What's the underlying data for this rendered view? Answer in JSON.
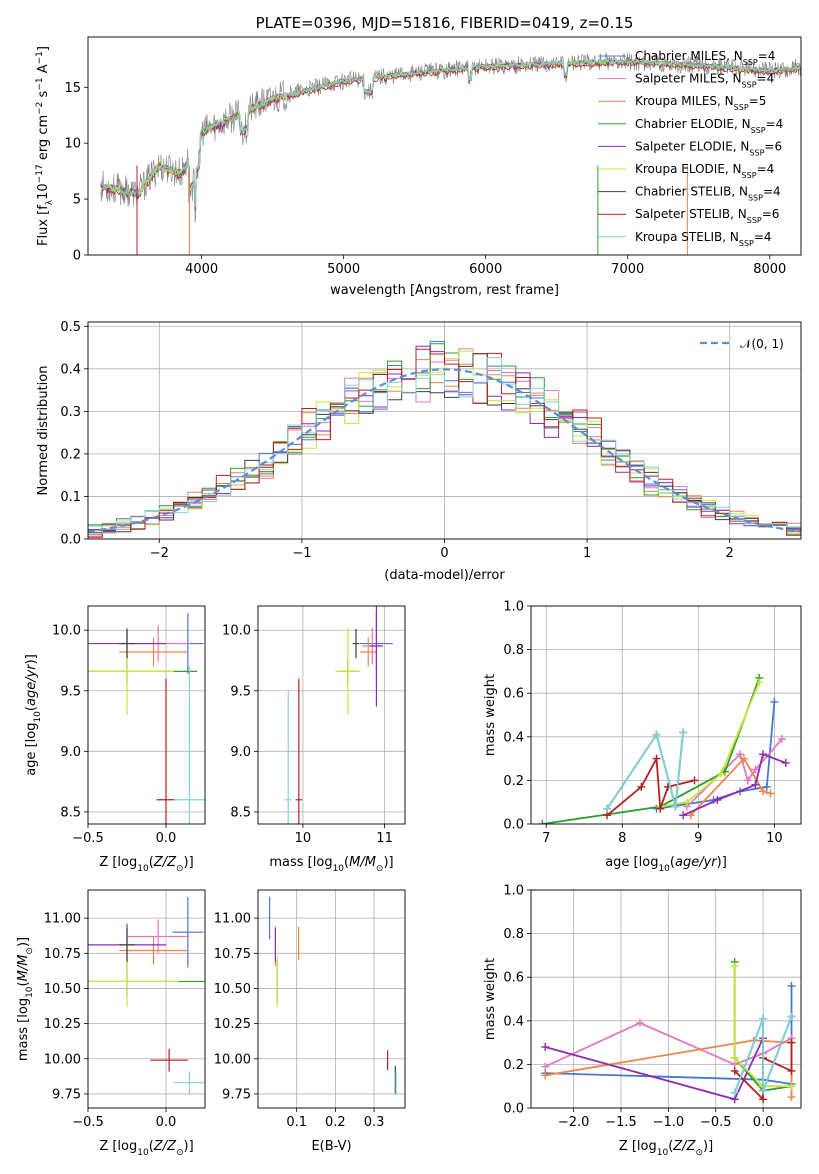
{
  "chart_data": [
    {
      "type": "line",
      "title": "PLATE=0396, MJD=51816, FIBERID=0419, z=0.15",
      "xlabel": "wavelength [Angstrom, rest frame]",
      "ylabel": "Flux [f_λ 10^-17 erg cm^-2 s^-1 A^-1]",
      "xlim": [
        3200,
        8220
      ],
      "ylim": [
        0,
        19.5
      ],
      "xticks": [
        4000,
        5000,
        6000,
        7000,
        8000
      ],
      "yticks": [
        0,
        5,
        10,
        15
      ],
      "grid": false,
      "legend_position": "top-right",
      "series": [
        {
          "name": "Chabrier MILES, N_SSP=4",
          "color": "#4878d0"
        },
        {
          "name": "Salpeter MILES, N_SSP=4",
          "color": "#e377c2"
        },
        {
          "name": "Kroupa MILES, N_SSP=5",
          "color": "#ee854a"
        },
        {
          "name": "Chabrier ELODIE, N_SSP=4",
          "color": "#2ca02c"
        },
        {
          "name": "Salpeter ELODIE, N_SSP=6",
          "color": "#8e2bb3"
        },
        {
          "name": "Kroupa ELODIE, N_SSP=4",
          "color": "#c8e63c"
        },
        {
          "name": "Chabrier STELIB, N_SSP=4",
          "color": "#404040"
        },
        {
          "name": "Salpeter STELIB, N_SSP=6",
          "color": "#b22222"
        },
        {
          "name": "Kroupa STELIB, N_SSP=4",
          "color": "#7fd3d9"
        }
      ],
      "spectrum_anchors": {
        "x": [
          3290,
          3550,
          3700,
          3860,
          4000,
          4300,
          4500,
          5000,
          5500,
          6000,
          6600,
          7000,
          7500,
          8000,
          8220
        ],
        "y": [
          6.2,
          5.5,
          8.0,
          7.3,
          11.0,
          12.8,
          14.0,
          15.6,
          16.3,
          16.9,
          17.2,
          17.3,
          17.0,
          16.5,
          16.8
        ]
      }
    },
    {
      "type": "line",
      "xlabel": "(data-model)/error",
      "ylabel": "Normed distribution",
      "xlim": [
        -2.5,
        2.5
      ],
      "ylim": [
        0,
        0.51
      ],
      "xticks": [
        -2,
        -1,
        0,
        1,
        2
      ],
      "yticks": [
        0.0,
        0.1,
        0.2,
        0.3,
        0.4,
        0.5
      ],
      "grid": true,
      "legend_position": "top-right",
      "legend": "𝒩(0, 1)",
      "curve_color": "#5b8ed6",
      "bin_width": 0.1,
      "hist_colors": [
        "#4878d0",
        "#e377c2",
        "#ee854a",
        "#2ca02c",
        "#8e2bb3",
        "#c8e63c",
        "#404040",
        "#b22222",
        "#7fd3d9"
      ]
    },
    {
      "type": "scatter",
      "xlabel": "Z [log10(Z/Z⊙)]",
      "ylabel": "age [log10(age/yr)]",
      "xlim": [
        -0.5,
        0.25
      ],
      "ylim": [
        8.4,
        10.2
      ],
      "xticks": [
        -0.5,
        0.0
      ],
      "xticklabels": [
        "−0.5",
        "0.0"
      ],
      "yticks": [
        8.5,
        9.0,
        9.5,
        10.0
      ],
      "grid": true,
      "points": [
        {
          "x": 0.14,
          "y": 9.89,
          "xerr": 0.1,
          "yerr": 0.25,
          "color": "#4878d0"
        },
        {
          "x": -0.05,
          "y": 9.89,
          "xerr": 0.2,
          "yerr": 0.15,
          "color": "#e377c2"
        },
        {
          "x": -0.08,
          "y": 9.82,
          "xerr": 0.22,
          "yerr": 0.12,
          "color": "#ee854a"
        },
        {
          "x": -0.25,
          "y": 9.66,
          "xerr": 0.45,
          "yerr": 0.1,
          "color": "#2ca02c"
        },
        {
          "x": -0.25,
          "y": 9.89,
          "xerr": 0.25,
          "yerr": 0.13,
          "color": "#8e2bb3"
        },
        {
          "x": -0.25,
          "y": 9.66,
          "xerr": 0.3,
          "yerr": 0.36,
          "color": "#c8e63c"
        },
        {
          "x": -0.25,
          "y": 9.89,
          "xerr": 0.05,
          "yerr": 0.12,
          "color": "#404040"
        },
        {
          "x": 0.0,
          "y": 8.6,
          "xerr": 0.06,
          "yerr": 1.0,
          "color": "#b22222"
        },
        {
          "x": 0.15,
          "y": 8.6,
          "xerr": 0.1,
          "yerr": 1.1,
          "color": "#7fd3d9"
        }
      ]
    },
    {
      "type": "scatter",
      "xlabel": "mass [log10(M/M⊙)]",
      "xlim": [
        9.45,
        11.25
      ],
      "ylim": [
        8.4,
        10.2
      ],
      "xticks": [
        10,
        11
      ],
      "yticks": [
        8.5,
        9.0,
        9.5,
        10.0
      ],
      "grid": true,
      "points": [
        {
          "x": 10.9,
          "y": 9.89,
          "xerr": 0.2,
          "yerr": 0.25,
          "color": "#4878d0"
        },
        {
          "x": 10.85,
          "y": 9.87,
          "xerr": 0.12,
          "yerr": 0.15,
          "color": "#e377c2"
        },
        {
          "x": 10.8,
          "y": 9.82,
          "xerr": 0.1,
          "yerr": 0.12,
          "color": "#ee854a"
        },
        {
          "x": 10.55,
          "y": 9.66,
          "xerr": 0.12,
          "yerr": 0.1,
          "color": "#2ca02c"
        },
        {
          "x": 10.9,
          "y": 9.87,
          "xerr": 0.08,
          "yerr": 0.5,
          "color": "#8e2bb3"
        },
        {
          "x": 10.55,
          "y": 9.66,
          "xerr": 0.15,
          "yerr": 0.36,
          "color": "#c8e63c"
        },
        {
          "x": 10.65,
          "y": 9.89,
          "xerr": 0.04,
          "yerr": 0.12,
          "color": "#404040"
        },
        {
          "x": 9.95,
          "y": 8.6,
          "xerr": 0.04,
          "yerr": 1.0,
          "color": "#b22222"
        },
        {
          "x": 9.82,
          "y": 8.6,
          "xerr": 0.04,
          "yerr": 0.9,
          "color": "#7fd3d9"
        }
      ]
    },
    {
      "type": "line",
      "xlabel": "age [log10(age/yr)]",
      "ylabel": "mass weight",
      "xlim": [
        6.8,
        10.35
      ],
      "ylim": [
        0,
        1.0
      ],
      "xticks": [
        7,
        8,
        9,
        10
      ],
      "yticks": [
        0.0,
        0.2,
        0.4,
        0.6,
        0.8,
        1.0
      ],
      "grid": true,
      "series": [
        {
          "color": "#4878d0",
          "x": [
            8.45,
            9.2,
            9.55,
            9.9,
            10.0
          ],
          "y": [
            0.07,
            0.11,
            0.15,
            0.17,
            0.56
          ]
        },
        {
          "color": "#e377c2",
          "x": [
            8.85,
            9.55,
            9.65,
            9.75,
            10.1
          ],
          "y": [
            0.08,
            0.32,
            0.2,
            0.25,
            0.39
          ]
        },
        {
          "color": "#ee854a",
          "x": [
            8.9,
            9.6,
            9.85,
            9.95
          ],
          "y": [
            0.04,
            0.3,
            0.15,
            0.14
          ]
        },
        {
          "color": "#2ca02c",
          "x": [
            6.95,
            8.5,
            9.35,
            9.8
          ],
          "y": [
            0.0,
            0.08,
            0.24,
            0.67
          ]
        },
        {
          "color": "#8e2bb3",
          "x": [
            8.8,
            9.25,
            9.75,
            9.85,
            10.15
          ],
          "y": [
            0.04,
            0.11,
            0.18,
            0.32,
            0.28
          ]
        },
        {
          "color": "#c8e63c",
          "x": [
            8.5,
            8.85,
            9.3,
            9.8
          ],
          "y": [
            0.08,
            0.1,
            0.23,
            0.65
          ]
        },
        {
          "color": "#404040",
          "x": [
            7.8,
            8.45,
            8.7,
            8.8
          ],
          "y": [
            0.07,
            0.41,
            0.08,
            0.42
          ]
        },
        {
          "color": "#b22222",
          "x": [
            7.8,
            8.25,
            8.45,
            8.5,
            8.6,
            8.95
          ],
          "y": [
            0.04,
            0.17,
            0.3,
            0.07,
            0.17,
            0.2
          ]
        },
        {
          "color": "#7fd3d9",
          "x": [
            7.8,
            8.45,
            8.7,
            8.8
          ],
          "y": [
            0.07,
            0.41,
            0.08,
            0.42
          ]
        }
      ]
    },
    {
      "type": "scatter",
      "xlabel": "Z [log10(Z/Z⊙)]",
      "ylabel": "mass [log10(M/M⊙)]",
      "xlim": [
        -0.5,
        0.25
      ],
      "ylim": [
        9.65,
        11.2
      ],
      "xticks": [
        -0.5,
        0.0
      ],
      "xticklabels": [
        "−0.5",
        "0.0"
      ],
      "yticks": [
        9.75,
        10.0,
        10.25,
        10.5,
        10.75,
        11.0
      ],
      "grid": true,
      "points": [
        {
          "x": 0.14,
          "y": 10.9,
          "xerr": 0.1,
          "yerr": 0.25,
          "color": "#4878d0"
        },
        {
          "x": -0.05,
          "y": 10.87,
          "xerr": 0.2,
          "yerr": 0.12,
          "color": "#e377c2"
        },
        {
          "x": -0.08,
          "y": 10.77,
          "xerr": 0.22,
          "yerr": 0.1,
          "color": "#ee854a"
        },
        {
          "x": -0.25,
          "y": 10.55,
          "xerr": 0.5,
          "yerr": 0.1,
          "color": "#2ca02c"
        },
        {
          "x": -0.25,
          "y": 10.81,
          "xerr": 0.25,
          "yerr": 0.15,
          "color": "#8e2bb3"
        },
        {
          "x": -0.25,
          "y": 10.55,
          "xerr": 0.33,
          "yerr": 0.18,
          "color": "#c8e63c"
        },
        {
          "x": -0.25,
          "y": 10.81,
          "xerr": 0.05,
          "yerr": 0.12,
          "color": "#404040"
        },
        {
          "x": 0.02,
          "y": 9.99,
          "xerr": 0.12,
          "yerr": 0.08,
          "color": "#b22222"
        },
        {
          "x": 0.15,
          "y": 9.83,
          "xerr": 0.1,
          "yerr": 0.08,
          "color": "#7fd3d9"
        }
      ]
    },
    {
      "type": "scatter",
      "xlabel": "E(B-V)",
      "xlim": [
        0.0,
        0.38
      ],
      "ylim": [
        9.65,
        11.2
      ],
      "xticks": [
        0.1,
        0.2,
        0.3
      ],
      "xticklabels": [
        "0.1",
        "0.2",
        "0.3"
      ],
      "yticks": [
        9.75,
        10.0,
        10.25,
        10.5,
        10.75,
        11.0
      ],
      "grid": true,
      "points": [
        {
          "x": 0.03,
          "y": 11.0,
          "xerr": 0.0,
          "yerr": 0.15,
          "color": "#4878d0"
        },
        {
          "x": 0.105,
          "y": 10.82,
          "xerr": 0.0,
          "yerr": 0.12,
          "color": "#ee854a"
        },
        {
          "x": 0.045,
          "y": 10.8,
          "xerr": 0.0,
          "yerr": 0.14,
          "color": "#e377c2"
        },
        {
          "x": 0.05,
          "y": 10.55,
          "xerr": 0.0,
          "yerr": 0.15,
          "color": "#2ca02c"
        },
        {
          "x": 0.045,
          "y": 10.81,
          "xerr": 0.0,
          "yerr": 0.12,
          "color": "#8e2bb3"
        },
        {
          "x": 0.05,
          "y": 10.55,
          "xerr": 0.0,
          "yerr": 0.18,
          "color": "#c8e63c"
        },
        {
          "x": 0.355,
          "y": 9.85,
          "xerr": 0.0,
          "yerr": 0.1,
          "color": "#404040"
        },
        {
          "x": 0.335,
          "y": 9.99,
          "xerr": 0.0,
          "yerr": 0.07,
          "color": "#b22222"
        },
        {
          "x": 0.357,
          "y": 9.83,
          "xerr": 0.0,
          "yerr": 0.08,
          "color": "#7fd3d9"
        }
      ]
    },
    {
      "type": "line",
      "xlabel": "Z [log10(Z/Z⊙)]",
      "ylabel": "mass weight",
      "xlim": [
        -2.45,
        0.4
      ],
      "ylim": [
        0,
        1.0
      ],
      "xticks": [
        -2.0,
        -1.5,
        -1.0,
        -0.5,
        0.0
      ],
      "xticklabels": [
        "−2.0",
        "−1.5",
        "−1.0",
        "−0.5",
        "0.0"
      ],
      "yticks": [
        0.0,
        0.2,
        0.4,
        0.6,
        0.8,
        1.0
      ],
      "grid": true,
      "series": [
        {
          "color": "#4878d0",
          "x": [
            -2.3,
            0.0,
            0.3,
            0.3
          ],
          "y": [
            0.16,
            0.13,
            0.11,
            0.56
          ]
        },
        {
          "color": "#e377c2",
          "x": [
            -2.3,
            -1.3,
            -0.3,
            0.0,
            0.3
          ],
          "y": [
            0.19,
            0.39,
            0.2,
            0.25,
            0.32
          ]
        },
        {
          "color": "#ee854a",
          "x": [
            -2.3,
            -0.1,
            0.3,
            0.3
          ],
          "y": [
            0.15,
            0.31,
            0.3,
            0.05
          ]
        },
        {
          "color": "#2ca02c",
          "x": [
            -0.3,
            -0.3,
            0.0,
            0.3
          ],
          "y": [
            0.67,
            0.23,
            0.08,
            0.1
          ]
        },
        {
          "color": "#8e2bb3",
          "x": [
            -2.3,
            -0.3,
            0.0
          ],
          "y": [
            0.28,
            0.04,
            0.32
          ]
        },
        {
          "color": "#c8e63c",
          "x": [
            -0.3,
            -0.3,
            0.0,
            0.3
          ],
          "y": [
            0.65,
            0.23,
            0.1,
            0.1
          ]
        },
        {
          "color": "#404040",
          "x": [
            -0.3,
            0.0,
            0.0,
            0.3
          ],
          "y": [
            0.07,
            0.41,
            0.08,
            0.42
          ]
        },
        {
          "color": "#b22222",
          "x": [
            -0.3,
            0.0,
            0.0,
            0.3,
            0.3
          ],
          "y": [
            0.17,
            0.04,
            0.23,
            0.17,
            0.3
          ]
        },
        {
          "color": "#7fd3d9",
          "x": [
            -0.3,
            0.0,
            0.0,
            0.3
          ],
          "y": [
            0.07,
            0.41,
            0.08,
            0.42
          ]
        }
      ]
    }
  ]
}
